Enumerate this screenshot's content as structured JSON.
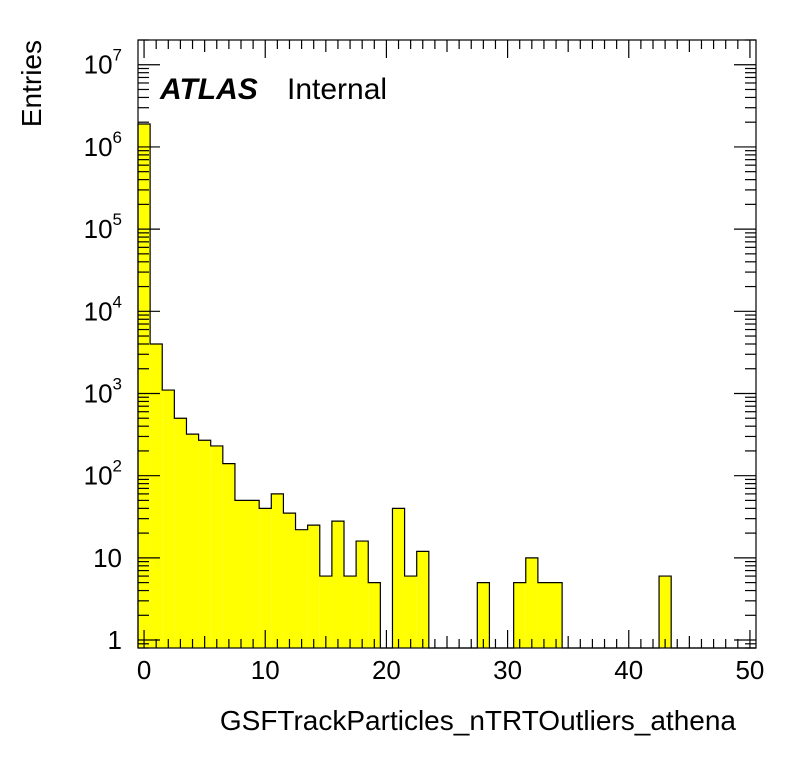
{
  "chart_data": {
    "type": "bar",
    "histogram": true,
    "title": "",
    "xlabel": "GSFTrackParticles_nTRTOutliers_athena",
    "ylabel": "Entries",
    "xlim": [
      -0.5,
      50.5
    ],
    "ylim": [
      0.8,
      20000000
    ],
    "yscale": "log",
    "grid": false,
    "fill_color": "#ffff00",
    "line_color": "#000000",
    "x_tick_labels": [
      "0",
      "10",
      "20",
      "30",
      "40",
      "50"
    ],
    "y_tick_labels": [
      {
        "base": "1",
        "exp": ""
      },
      {
        "base": "10",
        "exp": ""
      },
      {
        "base": "10",
        "exp": "2"
      },
      {
        "base": "10",
        "exp": "3"
      },
      {
        "base": "10",
        "exp": "4"
      },
      {
        "base": "10",
        "exp": "5"
      },
      {
        "base": "10",
        "exp": "6"
      },
      {
        "base": "10",
        "exp": "7"
      }
    ],
    "annotations": {
      "atlas": "ATLAS",
      "status": "Internal"
    },
    "bin_width": 1,
    "bin_centers": [
      0,
      1,
      2,
      3,
      4,
      5,
      6,
      7,
      8,
      9,
      10,
      11,
      12,
      13,
      14,
      15,
      16,
      17,
      18,
      19,
      20,
      21,
      22,
      23,
      24,
      25,
      26,
      27,
      28,
      29,
      30,
      31,
      32,
      33,
      34,
      35,
      36,
      37,
      38,
      39,
      40,
      41,
      42,
      43,
      44,
      45,
      46,
      47,
      48,
      49,
      50
    ],
    "values": [
      1900000,
      4000,
      1100,
      500,
      320,
      270,
      230,
      140,
      50,
      50,
      40,
      60,
      35,
      22,
      25,
      6,
      28,
      6,
      16,
      5,
      0,
      40,
      6,
      12,
      0,
      0,
      0,
      0,
      5,
      0,
      0,
      5,
      10,
      5,
      5,
      0,
      0,
      0,
      0,
      0,
      0,
      0,
      0,
      6,
      0,
      0,
      0,
      0,
      0,
      0,
      0
    ]
  }
}
